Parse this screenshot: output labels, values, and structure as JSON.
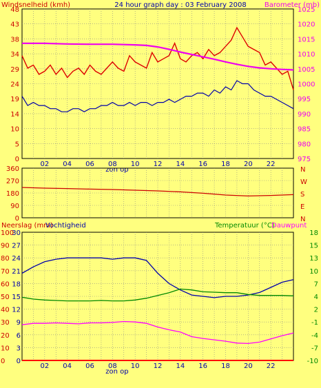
{
  "chart_data": [
    {
      "type": "line",
      "title": "24 hour graph day : 03 February 2008",
      "ylabel_left": "Windsnelheid (kmh)",
      "ylabel_right": "Barometer (mb)",
      "y_left_ticks": [
        "48",
        "43",
        "38",
        "34",
        "29",
        "24",
        "19",
        "14",
        "10",
        "5",
        "0"
      ],
      "y_right_ticks": [
        "1025",
        "1020",
        "1015",
        "1010",
        "1005",
        "1000",
        "995",
        "990",
        "985",
        "980",
        "975"
      ],
      "x_ticks": [
        "02",
        "04",
        "06",
        "08",
        "10",
        "12",
        "14",
        "16",
        "18",
        "20",
        "22",
        ""
      ],
      "sunrise_label": "zon op",
      "ylim_left": [
        0,
        48
      ],
      "ylim_right": [
        975,
        1025
      ],
      "x_range": [
        0,
        24
      ],
      "series": [
        {
          "name": "Windsnelheid",
          "axis": "left",
          "color": "#dd0000",
          "x": [
            0,
            0.5,
            1,
            1.5,
            2,
            2.5,
            3,
            3.5,
            4,
            4.5,
            5,
            5.5,
            6,
            6.5,
            7,
            7.5,
            8,
            8.5,
            9,
            9.5,
            10,
            10.5,
            11,
            11.5,
            12,
            12.5,
            13,
            13.5,
            14,
            14.5,
            15,
            15.5,
            16,
            16.5,
            17,
            17.5,
            18,
            18.5,
            19,
            19.5,
            20,
            20.5,
            21,
            21.5,
            22,
            22.5,
            23,
            23.5,
            24
          ],
          "values": [
            33,
            29,
            30,
            27,
            28,
            30,
            27,
            29,
            26,
            28,
            29,
            27,
            30,
            28,
            27,
            29,
            31,
            29,
            28,
            33,
            31,
            30,
            29,
            34,
            31,
            32,
            33,
            37,
            32,
            31,
            33,
            34,
            32,
            35,
            33,
            34,
            36,
            38,
            42,
            39,
            36,
            35,
            34,
            30,
            31,
            29,
            27,
            28,
            22
          ]
        },
        {
          "name": "Windsnelheid (gemiddeld)",
          "axis": "left",
          "color": "#0000aa",
          "x": [
            0,
            0.5,
            1,
            1.5,
            2,
            2.5,
            3,
            3.5,
            4,
            4.5,
            5,
            5.5,
            6,
            6.5,
            7,
            7.5,
            8,
            8.5,
            9,
            9.5,
            10,
            10.5,
            11,
            11.5,
            12,
            12.5,
            13,
            13.5,
            14,
            14.5,
            15,
            15.5,
            16,
            16.5,
            17,
            17.5,
            18,
            18.5,
            19,
            19.5,
            20,
            20.5,
            21,
            21.5,
            22,
            22.5,
            23,
            23.5,
            24
          ],
          "values": [
            20,
            17,
            18,
            17,
            17,
            16,
            16,
            15,
            15,
            16,
            16,
            15,
            16,
            16,
            17,
            17,
            18,
            17,
            17,
            18,
            17,
            18,
            18,
            17,
            18,
            18,
            19,
            18,
            19,
            20,
            20,
            21,
            21,
            20,
            22,
            21,
            23,
            22,
            25,
            24,
            24,
            22,
            21,
            20,
            20,
            19,
            18,
            17,
            16
          ]
        },
        {
          "name": "Barometer",
          "axis": "right",
          "color": "#ee00ee",
          "x": [
            0,
            2,
            4,
            6,
            8,
            10,
            11,
            12,
            13,
            14,
            15,
            16,
            17,
            18,
            19,
            20,
            21,
            22,
            23,
            24
          ],
          "values": [
            1013.5,
            1013.5,
            1013.3,
            1013.2,
            1013.2,
            1013.0,
            1012.8,
            1012.3,
            1011.5,
            1010.6,
            1009.8,
            1009.0,
            1008.2,
            1007.3,
            1006.5,
            1005.8,
            1005.3,
            1005.0,
            1004.8,
            1004.6
          ]
        }
      ]
    },
    {
      "type": "line",
      "ylabel_right_letters": [
        "N",
        "W",
        "S",
        "E",
        "N"
      ],
      "y_ticks": [
        "360",
        "270",
        "180",
        "90",
        "0"
      ],
      "ylim": [
        0,
        360
      ],
      "x_range": [
        0,
        24
      ],
      "series": [
        {
          "name": "Windrichting",
          "color": "#cc0000",
          "x": [
            0,
            2,
            4,
            6,
            8,
            10,
            12,
            14,
            16,
            18,
            20,
            22,
            24
          ],
          "values": [
            220,
            215,
            212,
            208,
            205,
            200,
            195,
            188,
            178,
            165,
            158,
            162,
            168
          ]
        }
      ]
    },
    {
      "type": "line",
      "ylabel_left": "Neerslag (mm)",
      "ylabel_left2": "Vochtigheid",
      "ylabel_right": "Temperatuur (°C)",
      "ylabel_right2": "Dauwpunt",
      "y_left_ticks": [
        "100",
        "90",
        "80",
        "70",
        "60",
        "50",
        "40",
        "30",
        "20",
        "10",
        "0"
      ],
      "y_left_ticks2": [
        "30",
        "27",
        "24",
        "21",
        "18",
        "15",
        "12",
        "9",
        "6",
        "3",
        "0"
      ],
      "y_right_ticks": [
        "18",
        "15",
        "13",
        "10",
        "7",
        "4",
        "2",
        "-1",
        "-4",
        "-7",
        "-10"
      ],
      "x_ticks": [
        "02",
        "04",
        "06",
        "08",
        "10",
        "12",
        "14",
        "16",
        "18",
        "20",
        "22",
        ""
      ],
      "sunrise_label": "zon op",
      "x_range": [
        0,
        24
      ],
      "ylim_left": [
        0,
        100
      ],
      "ylim_right": [
        -10,
        18
      ],
      "series": [
        {
          "name": "Vochtigheid",
          "axis": "left",
          "color": "#0000aa",
          "x": [
            0,
            1,
            2,
            3,
            4,
            5,
            6,
            7,
            8,
            9,
            10,
            11,
            12,
            13,
            14,
            15,
            16,
            17,
            18,
            19,
            20,
            21,
            22,
            23,
            24
          ],
          "values": [
            68,
            73,
            77,
            79,
            80,
            80,
            80,
            80,
            79,
            80,
            80,
            78,
            68,
            60,
            55,
            51,
            50,
            49,
            50,
            50,
            51,
            53,
            57,
            61,
            63
          ]
        },
        {
          "name": "Temperatuur",
          "axis": "right",
          "color": "#008800",
          "x": [
            0,
            1,
            2,
            3,
            4,
            5,
            6,
            7,
            8,
            9,
            10,
            11,
            12,
            13,
            14,
            15,
            16,
            17,
            18,
            19,
            20,
            21,
            22,
            23,
            24
          ],
          "values": [
            3.8,
            3.4,
            3.2,
            3.1,
            3.0,
            3.0,
            3.0,
            3.1,
            3.0,
            3.0,
            3.2,
            3.6,
            4.2,
            4.8,
            5.6,
            5.4,
            5.0,
            4.9,
            4.8,
            4.8,
            4.4,
            4.2,
            4.2,
            4.2,
            4.1
          ]
        },
        {
          "name": "Dauwpunt",
          "axis": "right",
          "color": "#ff00ff",
          "x": [
            0,
            1,
            2,
            3,
            4,
            5,
            6,
            7,
            8,
            9,
            10,
            11,
            12,
            13,
            14,
            15,
            16,
            17,
            18,
            19,
            20,
            21,
            22,
            23,
            24
          ],
          "values": [
            -2.2,
            -1.9,
            -1.9,
            -1.8,
            -1.9,
            -2.0,
            -1.8,
            -1.8,
            -1.7,
            -1.5,
            -1.6,
            -1.9,
            -2.7,
            -3.3,
            -3.8,
            -4.8,
            -5.2,
            -5.5,
            -5.8,
            -6.2,
            -6.3,
            -6.0,
            -5.3,
            -4.6,
            -4.0
          ]
        },
        {
          "name": "Neerslag",
          "axis": "left2",
          "color": "#ff0000",
          "x": [
            0,
            24
          ],
          "values": [
            0,
            0
          ]
        }
      ]
    }
  ]
}
